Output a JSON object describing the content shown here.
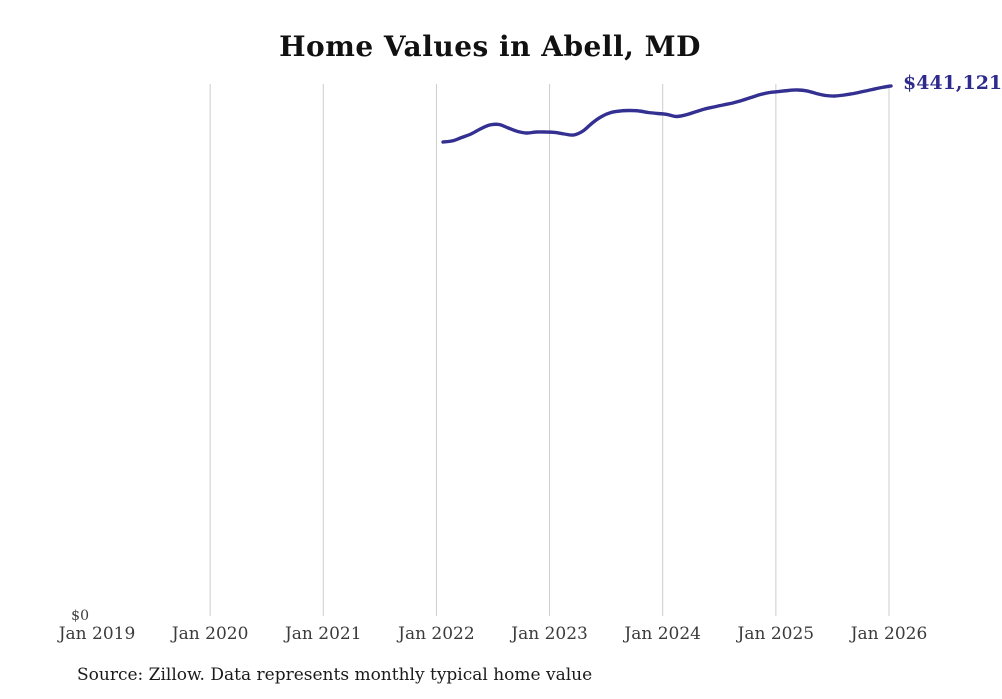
{
  "page": {
    "source_note": "Source: Zillow. Data represents monthly typical home value"
  },
  "chart_data": {
    "type": "line",
    "title": "Home Values in Abell, MD",
    "series_name": "Monthly typical home value",
    "x_tick_labels": [
      "Jan 2019",
      "Jan 2020",
      "Jan 2021",
      "Jan 2022",
      "Jan 2023",
      "Jan 2024",
      "Jan 2025",
      "Jan 2026"
    ],
    "y_zero_label": "$0",
    "end_label": "$441,121",
    "end_value": 441121,
    "data_range": {
      "start": "Jan 2022",
      "end": "Jan 2026",
      "frequency": "monthly"
    },
    "ylim": [
      0,
      443000
    ],
    "grid": "vertical-only",
    "legend": "none",
    "values": [
      394400,
      395300,
      398200,
      401100,
      405300,
      408600,
      409000,
      406100,
      403200,
      401900,
      402800,
      402800,
      402400,
      401100,
      400300,
      403600,
      410300,
      415700,
      419000,
      420300,
      420700,
      420300,
      419000,
      418200,
      417400,
      415700,
      417000,
      419400,
      421900,
      423600,
      425300,
      426900,
      429000,
      431500,
      434000,
      435700,
      436500,
      437400,
      437800,
      437000,
      434900,
      433200,
      432800,
      433600,
      434900,
      436500,
      438200,
      439900,
      441121
    ],
    "colors": {
      "line": "#333091",
      "grid": "#cccccc",
      "end_label": "#2e2b8d"
    }
  }
}
